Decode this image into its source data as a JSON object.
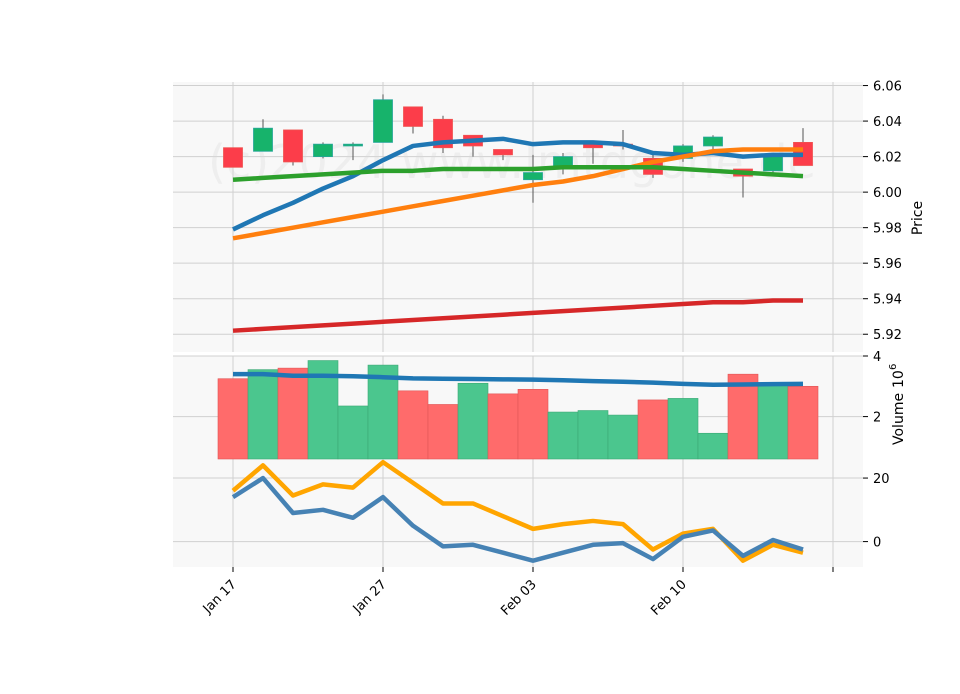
{
  "chart_data": [
    {
      "type": "candlestick",
      "panel": "price",
      "ylabel": "Price",
      "ylim": [
        5.91,
        6.062
      ],
      "yticks": [
        5.92,
        5.94,
        5.96,
        5.98,
        6.0,
        6.02,
        6.04,
        6.06
      ],
      "ytick_labels": [
        "5.92",
        "5.94",
        "5.96",
        "5.98",
        "6.00",
        "6.02",
        "6.04",
        "6.06"
      ],
      "x_tick_labels": [
        "Jan 17",
        "Jan 27",
        "Feb 03",
        "Feb 10"
      ],
      "watermark": "(c)2024 www.lmtdgone.de",
      "colors": {
        "up": "#26a69a",
        "down": "#ef5350",
        "up_fill": "#17b36b",
        "down_fill": "#fc3d4a"
      },
      "candles": [
        {
          "o": 6.025,
          "h": 6.025,
          "l": 6.014,
          "c": 6.014
        },
        {
          "o": 6.023,
          "h": 6.041,
          "l": 6.023,
          "c": 6.036
        },
        {
          "o": 6.035,
          "h": 6.035,
          "l": 6.015,
          "c": 6.017
        },
        {
          "o": 6.02,
          "h": 6.028,
          "l": 6.019,
          "c": 6.027
        },
        {
          "o": 6.026,
          "h": 6.028,
          "l": 6.018,
          "c": 6.027
        },
        {
          "o": 6.028,
          "h": 6.055,
          "l": 6.028,
          "c": 6.052
        },
        {
          "o": 6.048,
          "h": 6.048,
          "l": 6.033,
          "c": 6.037
        },
        {
          "o": 6.041,
          "h": 6.043,
          "l": 6.022,
          "c": 6.025
        },
        {
          "o": 6.032,
          "h": 6.032,
          "l": 6.02,
          "c": 6.026
        },
        {
          "o": 6.024,
          "h": 6.024,
          "l": 6.018,
          "c": 6.021
        },
        {
          "o": 6.007,
          "h": 6.021,
          "l": 5.994,
          "c": 6.011
        },
        {
          "o": 6.014,
          "h": 6.022,
          "l": 6.01,
          "c": 6.02
        },
        {
          "o": 6.027,
          "h": 6.028,
          "l": 6.016,
          "c": 6.025
        },
        {
          "o": 6.027,
          "h": 6.035,
          "l": 6.024,
          "c": 6.026
        },
        {
          "o": 6.019,
          "h": 6.021,
          "l": 6.008,
          "c": 6.01
        },
        {
          "o": 6.019,
          "h": 6.027,
          "l": 6.017,
          "c": 6.026
        },
        {
          "o": 6.026,
          "h": 6.032,
          "l": 6.024,
          "c": 6.031
        },
        {
          "o": 6.013,
          "h": 6.013,
          "l": 5.997,
          "c": 6.009
        },
        {
          "o": 6.012,
          "h": 6.022,
          "l": 6.01,
          "c": 6.02
        },
        {
          "o": 6.028,
          "h": 6.036,
          "l": 6.015,
          "c": 6.015
        }
      ],
      "overlays": [
        {
          "color": "#1f77b4",
          "values": [
            5.979,
            5.987,
            5.994,
            6.002,
            6.009,
            6.018,
            6.026,
            6.028,
            6.029,
            6.03,
            6.027,
            6.028,
            6.028,
            6.027,
            6.022,
            6.021,
            6.022,
            6.02,
            6.021,
            6.021
          ]
        },
        {
          "color": "#ff7f0e",
          "values": [
            5.974,
            5.977,
            5.98,
            5.983,
            5.986,
            5.989,
            5.992,
            5.995,
            5.998,
            6.001,
            6.004,
            6.006,
            6.009,
            6.013,
            6.017,
            6.02,
            6.023,
            6.024,
            6.024,
            6.024
          ]
        },
        {
          "color": "#2ca02c",
          "values": [
            6.007,
            6.008,
            6.009,
            6.01,
            6.011,
            6.012,
            6.012,
            6.013,
            6.013,
            6.013,
            6.013,
            6.014,
            6.014,
            6.014,
            6.014,
            6.013,
            6.012,
            6.011,
            6.01,
            6.009
          ]
        },
        {
          "color": "#d62728",
          "values": [
            5.922,
            5.923,
            5.924,
            5.925,
            5.926,
            5.927,
            5.928,
            5.929,
            5.93,
            5.931,
            5.932,
            5.933,
            5.934,
            5.935,
            5.936,
            5.937,
            5.938,
            5.938,
            5.939,
            5.939
          ]
        }
      ]
    },
    {
      "type": "bar",
      "panel": "volume",
      "ylabel": "Volume",
      "yexp": "10",
      "yexp_power": "6",
      "ylim": [
        0.6,
        4.0
      ],
      "yticks": [
        2,
        4
      ],
      "ytick_labels": [
        "2",
        "4"
      ],
      "colors": {
        "up": "#4bc68e",
        "down": "#ff6b6b"
      },
      "values": [
        3.25,
        3.55,
        3.6,
        3.85,
        2.35,
        3.7,
        2.85,
        2.4,
        3.1,
        2.75,
        2.9,
        2.15,
        2.2,
        2.05,
        2.55,
        2.6,
        1.45,
        3.4,
        3.05,
        3.0
      ],
      "directions": [
        "down",
        "up",
        "down",
        "up",
        "up",
        "up",
        "down",
        "down",
        "up",
        "down",
        "down",
        "up",
        "up",
        "up",
        "down",
        "up",
        "up",
        "down",
        "up",
        "down"
      ],
      "overlay": {
        "color": "#1f77b4",
        "values": [
          3.4,
          3.4,
          3.35,
          3.35,
          3.33,
          3.3,
          3.26,
          3.25,
          3.24,
          3.23,
          3.22,
          3.2,
          3.17,
          3.15,
          3.12,
          3.08,
          3.05,
          3.06,
          3.07,
          3.08
        ]
      }
    },
    {
      "type": "line",
      "panel": "indicator",
      "ylim": [
        -8,
        26
      ],
      "yticks": [
        0,
        20
      ],
      "ytick_labels": [
        "0",
        "20"
      ],
      "series": [
        {
          "color": "#ffa500",
          "values": [
            16,
            24,
            14.5,
            18,
            17,
            25,
            18.5,
            12,
            12,
            8,
            4,
            5.5,
            6.5,
            5.5,
            -2.5,
            2.5,
            4,
            -6,
            -1,
            -3.5
          ]
        },
        {
          "color": "#4682b4",
          "values": [
            14,
            20,
            9,
            10,
            7.5,
            14,
            5,
            -1.5,
            -1,
            -3.5,
            -6,
            -3.5,
            -1,
            -0.5,
            -5.5,
            1.5,
            3.5,
            -4.5,
            0.5,
            -2.5
          ]
        }
      ]
    }
  ]
}
